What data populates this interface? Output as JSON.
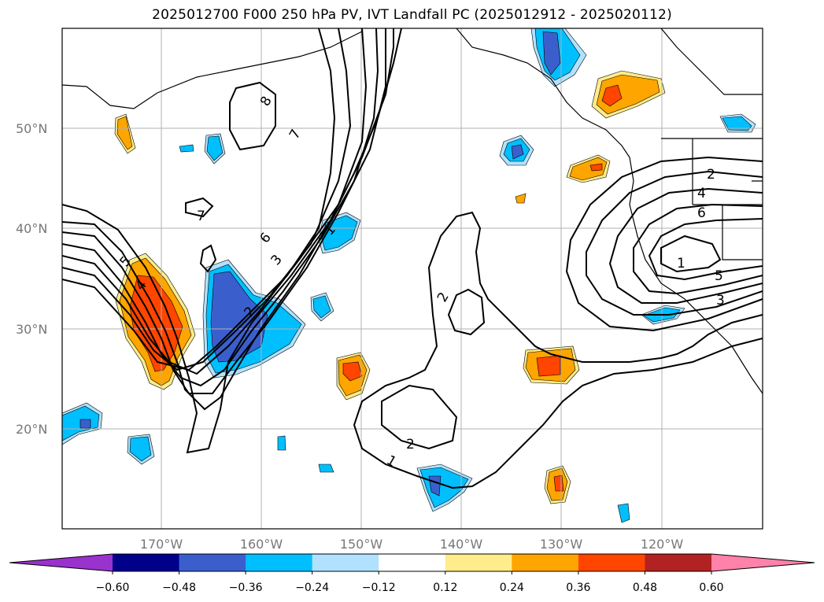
{
  "title": "2025012700 F000 250 hPa PV, IVT Landfall PC (2025012912 - 2025020112)",
  "map": {
    "lat_labels": [
      "50°N",
      "40°N",
      "30°N",
      "20°N"
    ],
    "lon_labels": [
      "170°W",
      "160°W",
      "150°W",
      "140°W",
      "130°W",
      "120°W"
    ],
    "contour_labels": [
      "8",
      "7",
      "7",
      "6",
      "5",
      "4",
      "3",
      "2",
      "1",
      "2",
      "2",
      "1",
      "2",
      "4",
      "6",
      "1",
      "5",
      "3"
    ]
  },
  "colorbar": {
    "ticks": [
      "−0.60",
      "−0.48",
      "−0.36",
      "−0.24",
      "−0.12",
      "0.12",
      "0.24",
      "0.36",
      "0.48",
      "0.60"
    ],
    "colors": [
      "#9a32cd",
      "#00008b",
      "#3a5fcd",
      "#00bfff",
      "#b0e2ff",
      "#ffffff",
      "#ffec8b",
      "#ffa500",
      "#ff4500",
      "#b22222",
      "#ff82ab"
    ]
  },
  "palette": {
    "neg_light": "#b0e2ff",
    "neg_mid": "#00bfff",
    "neg_dark": "#3a5fcd",
    "pos_light": "#ffec8b",
    "pos_mid": "#ffa500",
    "pos_dark": "#ff4500"
  }
}
